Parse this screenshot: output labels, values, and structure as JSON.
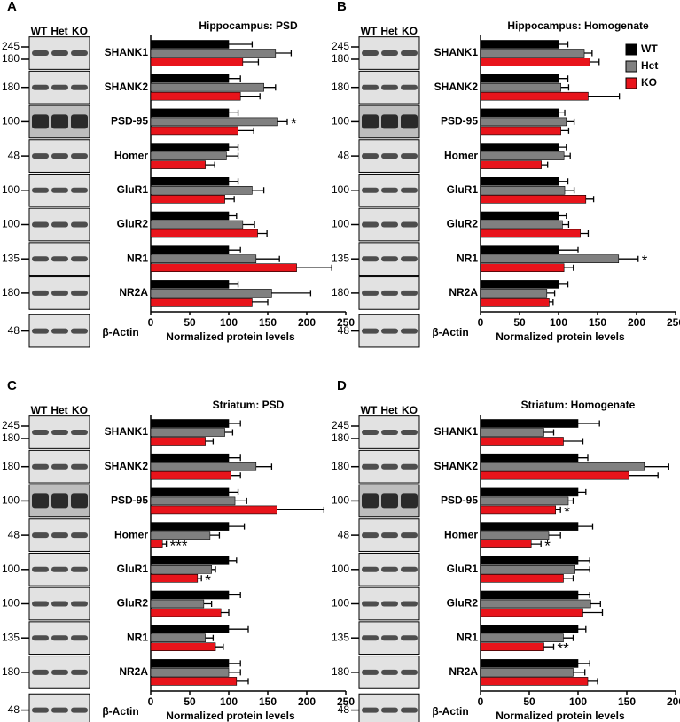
{
  "chart_data": [
    {
      "type": "bar",
      "orientation": "horizontal",
      "panel": "A",
      "title": "Hippocampus: PSD",
      "xlabel": "Normalized protein levels",
      "categories": [
        "SHANK1",
        "SHANK2",
        "PSD-95",
        "Homer",
        "GluR1",
        "GluR2",
        "NR1",
        "NR2A"
      ],
      "series": [
        {
          "name": "WT",
          "color": "#000000",
          "values": [
            100,
            100,
            100,
            100,
            100,
            100,
            100,
            100
          ],
          "errors": [
            30,
            15,
            12,
            12,
            12,
            10,
            15,
            12
          ],
          "significance": [
            null,
            null,
            null,
            null,
            null,
            null,
            null,
            null
          ]
        },
        {
          "name": "Het",
          "color": "#808080",
          "values": [
            160,
            145,
            163,
            97,
            130,
            118,
            135,
            155
          ],
          "errors": [
            20,
            15,
            12,
            15,
            15,
            15,
            30,
            50
          ],
          "significance": [
            null,
            null,
            "*",
            null,
            null,
            null,
            null,
            null
          ]
        },
        {
          "name": "KO",
          "color": "#e8141b",
          "values": [
            118,
            115,
            112,
            70,
            95,
            137,
            187,
            130
          ],
          "errors": [
            20,
            25,
            20,
            12,
            12,
            12,
            45,
            20
          ],
          "significance": [
            null,
            null,
            null,
            null,
            null,
            null,
            null,
            null
          ]
        }
      ],
      "xlim": [
        0,
        250
      ],
      "xticks": [
        0,
        50,
        100,
        150,
        200,
        250
      ],
      "blot": {
        "lanes": [
          "WT",
          "Het",
          "KO"
        ],
        "loading_control": "β-Actin",
        "mw": [
          [
            245,
            180
          ],
          [
            180
          ],
          [
            100
          ],
          [
            48
          ],
          [
            100
          ],
          [
            100
          ],
          [
            135
          ],
          [
            180
          ],
          [
            48
          ]
        ]
      }
    },
    {
      "type": "bar",
      "orientation": "horizontal",
      "panel": "B",
      "title": "Hippocampus: Homogenate",
      "xlabel": "Normalized protein levels",
      "categories": [
        "SHANK1",
        "SHANK2",
        "PSD-95",
        "Homer",
        "GluR1",
        "GluR2",
        "NR1",
        "NR2A"
      ],
      "series": [
        {
          "name": "WT",
          "color": "#000000",
          "values": [
            100,
            100,
            100,
            100,
            100,
            100,
            100,
            100
          ],
          "errors": [
            12,
            12,
            8,
            10,
            12,
            10,
            25,
            12
          ],
          "significance": [
            null,
            null,
            null,
            null,
            null,
            null,
            null,
            null
          ]
        },
        {
          "name": "Het",
          "color": "#808080",
          "values": [
            133,
            103,
            110,
            107,
            108,
            105,
            177,
            85
          ],
          "errors": [
            10,
            10,
            10,
            8,
            12,
            8,
            25,
            10
          ],
          "significance": [
            null,
            null,
            null,
            null,
            null,
            null,
            "*",
            null
          ]
        },
        {
          "name": "KO",
          "color": "#e8141b",
          "values": [
            140,
            138,
            103,
            78,
            135,
            128,
            107,
            88
          ],
          "errors": [
            12,
            40,
            10,
            8,
            10,
            10,
            12,
            5
          ],
          "significance": [
            null,
            null,
            null,
            null,
            null,
            null,
            null,
            null
          ]
        }
      ],
      "xlim": [
        0,
        250
      ],
      "xticks": [
        0,
        50,
        100,
        150,
        200,
        250
      ],
      "legend": "top-right",
      "blot": {
        "lanes": [
          "WT",
          "Het",
          "KO"
        ],
        "loading_control": "β-Actin",
        "mw": [
          [
            245,
            180
          ],
          [
            180
          ],
          [
            100
          ],
          [
            48
          ],
          [
            100
          ],
          [
            100
          ],
          [
            135
          ],
          [
            180
          ],
          [
            48
          ]
        ]
      }
    },
    {
      "type": "bar",
      "orientation": "horizontal",
      "panel": "C",
      "title": "Striatum: PSD",
      "xlabel": "Normalized protein levels",
      "categories": [
        "SHANK1",
        "SHANK2",
        "PSD-95",
        "Homer",
        "GluR1",
        "GluR2",
        "NR1",
        "NR2A"
      ],
      "series": [
        {
          "name": "WT",
          "color": "#000000",
          "values": [
            100,
            100,
            100,
            100,
            100,
            100,
            100,
            100
          ],
          "errors": [
            15,
            15,
            12,
            20,
            10,
            15,
            25,
            15
          ],
          "significance": [
            null,
            null,
            null,
            null,
            null,
            null,
            null,
            null
          ]
        },
        {
          "name": "Het",
          "color": "#808080",
          "values": [
            95,
            135,
            108,
            76,
            78,
            68,
            70,
            100
          ],
          "errors": [
            10,
            20,
            15,
            12,
            5,
            10,
            10,
            15
          ],
          "significance": [
            null,
            null,
            null,
            null,
            null,
            null,
            null,
            null
          ]
        },
        {
          "name": "KO",
          "color": "#e8141b",
          "values": [
            70,
            103,
            162,
            15,
            60,
            90,
            83,
            110
          ],
          "errors": [
            10,
            12,
            60,
            5,
            5,
            10,
            10,
            15
          ],
          "significance": [
            null,
            null,
            null,
            "***",
            "*",
            null,
            null,
            null
          ]
        }
      ],
      "xlim": [
        0,
        250
      ],
      "xticks": [
        0,
        50,
        100,
        150,
        200,
        250
      ],
      "blot": {
        "lanes": [
          "WT",
          "Het",
          "KO"
        ],
        "loading_control": "β-Actin",
        "mw": [
          [
            245,
            180
          ],
          [
            180
          ],
          [
            100
          ],
          [
            48
          ],
          [
            100
          ],
          [
            100
          ],
          [
            135
          ],
          [
            180
          ],
          [
            48
          ]
        ]
      }
    },
    {
      "type": "bar",
      "orientation": "horizontal",
      "panel": "D",
      "title": "Striatum: Homogenate",
      "xlabel": "Normalized protein levels",
      "categories": [
        "SHANK1",
        "SHANK2",
        "PSD-95",
        "Homer",
        "GluR1",
        "GluR2",
        "NR1",
        "NR2A"
      ],
      "series": [
        {
          "name": "WT",
          "color": "#000000",
          "values": [
            100,
            100,
            100,
            100,
            100,
            100,
            100,
            100
          ],
          "errors": [
            22,
            10,
            8,
            15,
            12,
            12,
            8,
            12
          ],
          "significance": [
            null,
            null,
            null,
            null,
            null,
            null,
            null,
            null
          ]
        },
        {
          "name": "Het",
          "color": "#808080",
          "values": [
            65,
            168,
            90,
            70,
            97,
            113,
            85,
            95
          ],
          "errors": [
            10,
            25,
            5,
            12,
            15,
            10,
            10,
            12
          ],
          "significance": [
            null,
            null,
            null,
            null,
            null,
            null,
            null,
            null
          ]
        },
        {
          "name": "KO",
          "color": "#e8141b",
          "values": [
            85,
            152,
            77,
            52,
            85,
            105,
            65,
            110
          ],
          "errors": [
            20,
            30,
            5,
            10,
            10,
            20,
            10,
            10
          ],
          "significance": [
            null,
            null,
            "*",
            "*",
            null,
            null,
            "**",
            null
          ]
        }
      ],
      "xlim": [
        0,
        200
      ],
      "xticks": [
        0,
        50,
        100,
        150,
        200
      ],
      "blot": {
        "lanes": [
          "WT",
          "Het",
          "KO"
        ],
        "loading_control": "β-Actin",
        "mw": [
          [
            245,
            180
          ],
          [
            180
          ],
          [
            100
          ],
          [
            48
          ],
          [
            100
          ],
          [
            100
          ],
          [
            135
          ],
          [
            180
          ],
          [
            48
          ]
        ]
      }
    }
  ]
}
